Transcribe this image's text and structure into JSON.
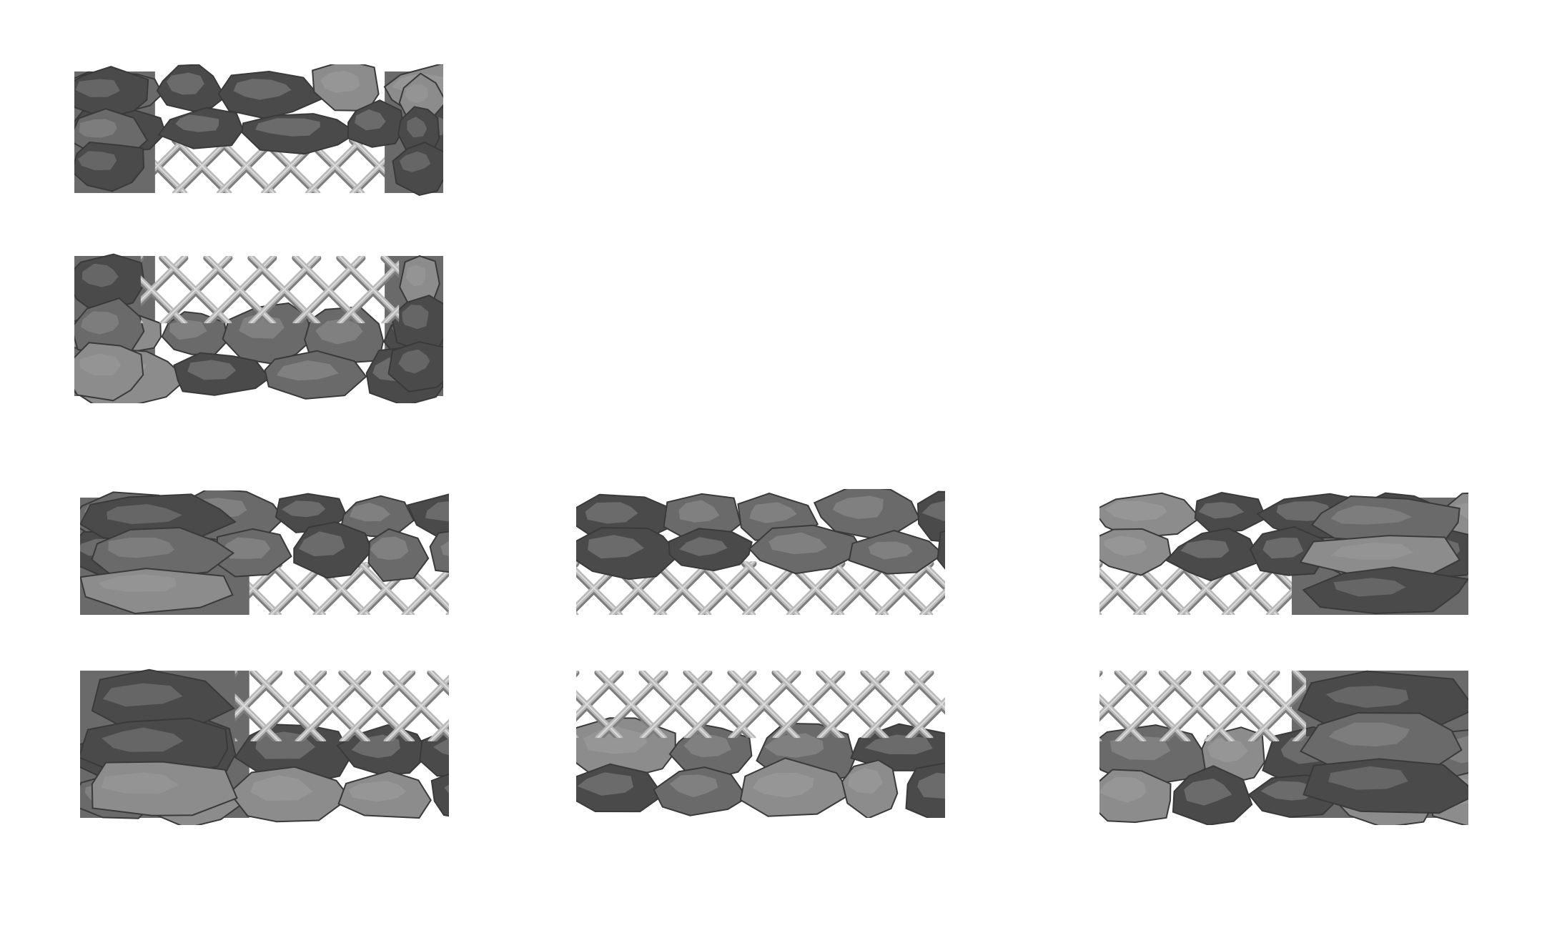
{
  "sheet": {
    "background": "#ffffff",
    "tiles": [
      {
        "name": "tile-top-cap-a",
        "variant": "top",
        "mesh": "bottom-center"
      },
      {
        "name": "tile-bottom-cap-a",
        "variant": "bottom",
        "mesh": "top-center"
      },
      {
        "name": "tile-top-left-end",
        "variant": "top",
        "mesh": "bottom-right"
      },
      {
        "name": "tile-top-middle",
        "variant": "top",
        "mesh": "bottom-full"
      },
      {
        "name": "tile-top-right-end",
        "variant": "top",
        "mesh": "bottom-left"
      },
      {
        "name": "tile-bottom-left-end",
        "variant": "bottom",
        "mesh": "top-right"
      },
      {
        "name": "tile-bottom-middle",
        "variant": "bottom",
        "mesh": "top-full"
      },
      {
        "name": "tile-bottom-right-end",
        "variant": "bottom",
        "mesh": "top-left"
      }
    ]
  },
  "palette": {
    "rock_dark": "#4a4a4a",
    "rock_mid": "#6a6a6a",
    "rock_light": "#8c8c8c",
    "rock_highlight": "#a8a8a8",
    "mesh_wire": "#b9b9b9",
    "mesh_shadow": "#7d7d7d"
  }
}
